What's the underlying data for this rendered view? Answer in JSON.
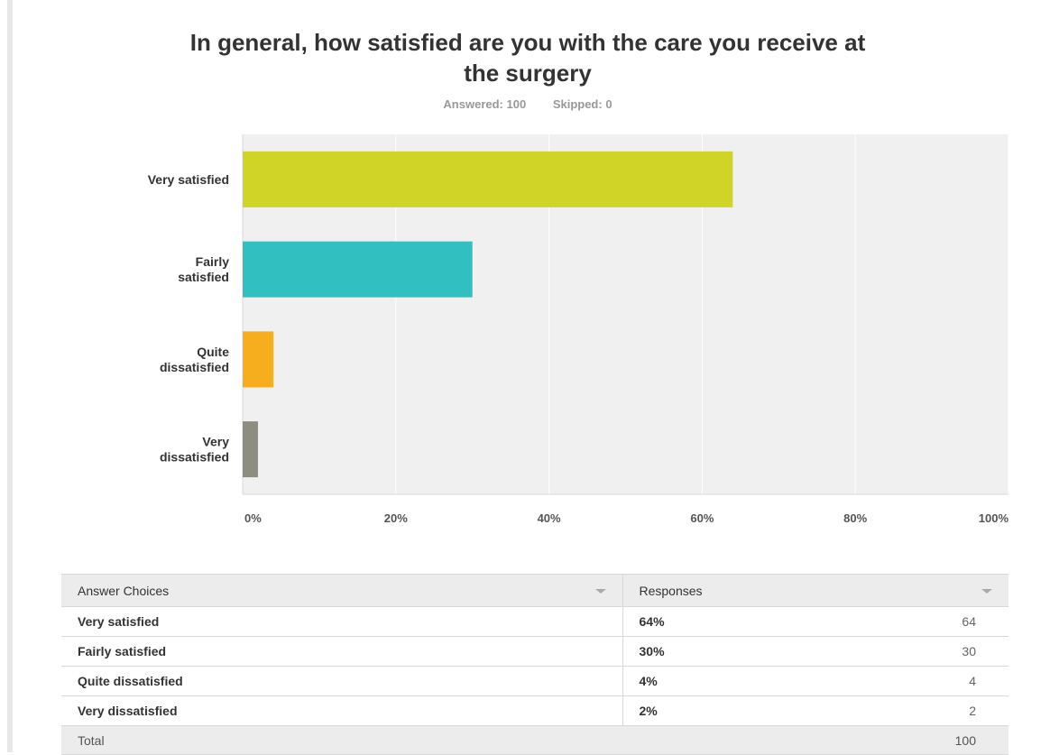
{
  "title": "In general, how satisfied are you with the care you receive at the surgery",
  "summary": {
    "answered": "Answered: 100",
    "skipped": "Skipped: 0"
  },
  "chart_data": {
    "type": "bar",
    "orientation": "horizontal",
    "categories": [
      "Very satisfied",
      "Fairly satisfied",
      "Quite dissatisfied",
      "Very dissatisfied"
    ],
    "category_lines": [
      [
        "Very satisfied"
      ],
      [
        "Fairly",
        "satisfied"
      ],
      [
        "Quite",
        "dissatisfied"
      ],
      [
        "Very",
        "dissatisfied"
      ]
    ],
    "values": [
      64,
      30,
      4,
      2
    ],
    "colors": [
      "#cfd427",
      "#32bfbf",
      "#f7ae1e",
      "#8e8e80"
    ],
    "xlim": [
      0,
      100
    ],
    "xticks": [
      0,
      20,
      40,
      60,
      80,
      100
    ],
    "xtick_labels": [
      "0%",
      "20%",
      "40%",
      "60%",
      "80%",
      "100%"
    ],
    "grid": true,
    "background": "#f0f0f0"
  },
  "table": {
    "headers": {
      "choices": "Answer Choices",
      "responses": "Responses"
    },
    "rows": [
      {
        "choice": "Very satisfied",
        "percent": "64%",
        "count": "64"
      },
      {
        "choice": "Fairly satisfied",
        "percent": "30%",
        "count": "30"
      },
      {
        "choice": "Quite dissatisfied",
        "percent": "4%",
        "count": "4"
      },
      {
        "choice": "Very dissatisfied",
        "percent": "2%",
        "count": "2"
      }
    ],
    "total_label": "Total",
    "total_count": "100"
  }
}
